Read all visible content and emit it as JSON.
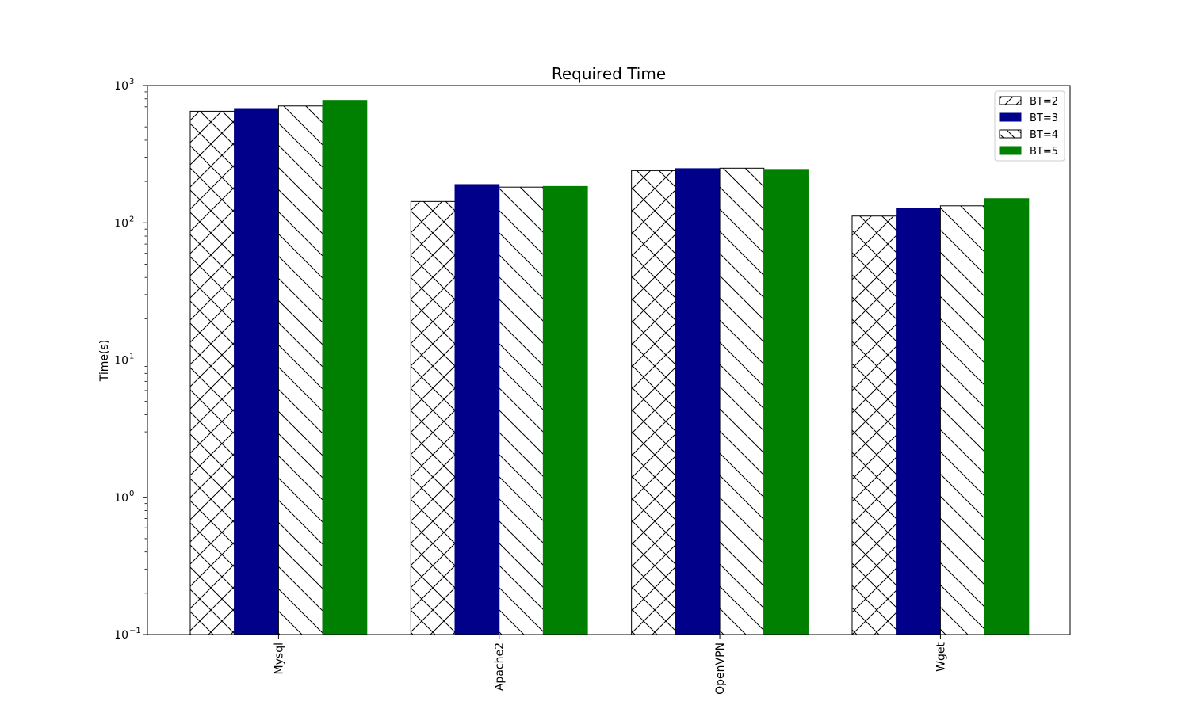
{
  "chart_data": {
    "type": "bar",
    "title": "Required Time",
    "xlabel": "",
    "ylabel": "Time(s)",
    "yscale": "log",
    "ylim": [
      0.1,
      1000
    ],
    "ytick_labels": [
      {
        "base": "10",
        "exp": "−1",
        "value": 0.1
      },
      {
        "base": "10",
        "exp": "0",
        "value": 1
      },
      {
        "base": "10",
        "exp": "1",
        "value": 10
      },
      {
        "base": "10",
        "exp": "2",
        "value": 100
      },
      {
        "base": "10",
        "exp": "3",
        "value": 1000
      }
    ],
    "categories": [
      "Mysql",
      "Apache2",
      "OpenVPN",
      "Wget"
    ],
    "series": [
      {
        "name": "BT=2",
        "values": [
          650,
          143,
          240,
          112
        ],
        "fill": "#ffffff",
        "hatch": "cross"
      },
      {
        "name": "BT=3",
        "values": [
          680,
          190,
          248,
          127
        ],
        "fill": "#00008b",
        "hatch": "none"
      },
      {
        "name": "BT=4",
        "values": [
          710,
          182,
          250,
          133
        ],
        "fill": "#ffffff",
        "hatch": "backslash"
      },
      {
        "name": "BT=5",
        "values": [
          780,
          184,
          245,
          150
        ],
        "fill": "#008000",
        "hatch": "none"
      }
    ],
    "legend_position": "top-right",
    "grid": false
  }
}
